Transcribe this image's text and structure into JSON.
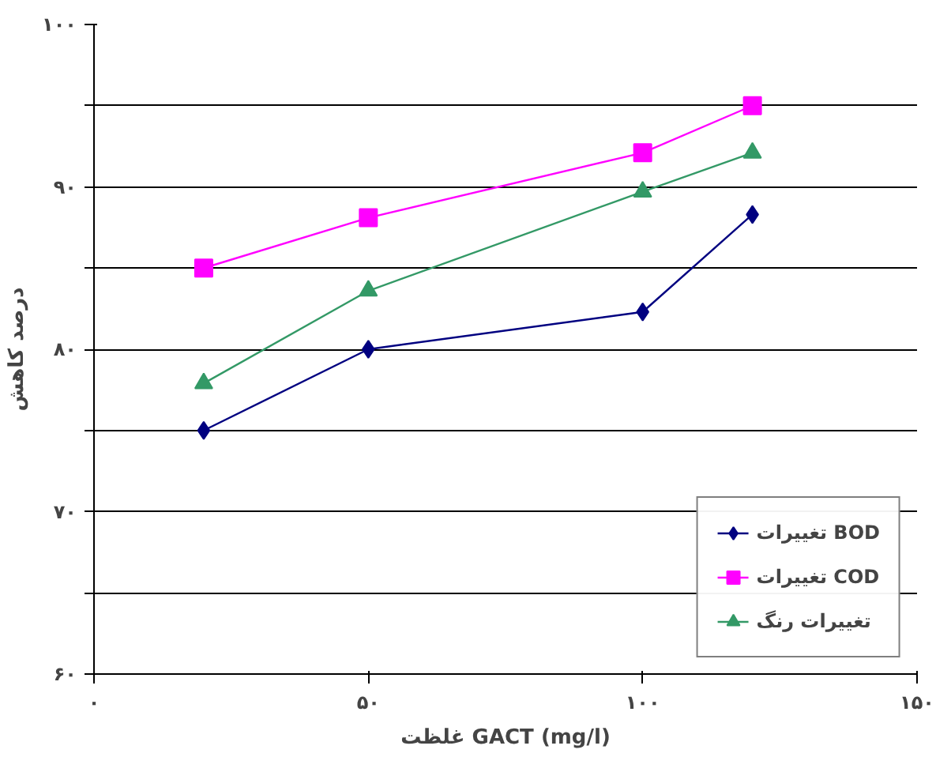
{
  "chart_data": {
    "type": "line",
    "xlabel": "غلظت GACT (mg/l)",
    "ylabel": "درصد کاهش",
    "x": [
      20,
      50,
      100,
      120
    ],
    "series": [
      {
        "name": "تغییرات BOD",
        "color": "#000080",
        "marker": "diamond",
        "values": [
          75.0,
          80.0,
          82.3,
          88.3
        ]
      },
      {
        "name": "تغییرات COD",
        "color": "#ff00ff",
        "marker": "square",
        "values": [
          85.0,
          88.1,
          92.1,
          95.0
        ]
      },
      {
        "name": "تغییرات رنگ",
        "color": "#339966",
        "marker": "triangle",
        "values": [
          77.9,
          83.6,
          89.7,
          92.1
        ]
      }
    ],
    "xlim": [
      0,
      150
    ],
    "xticks": [
      {
        "value": 0,
        "label": "۰"
      },
      {
        "value": 50,
        "label": "۵۰"
      },
      {
        "value": 100,
        "label": "۱۰۰"
      },
      {
        "value": 150,
        "label": "۱۵۰"
      }
    ],
    "ylim": [
      60,
      100
    ],
    "yticks": [
      {
        "value": 60,
        "label": "۶۰"
      },
      {
        "value": 65,
        "label": null
      },
      {
        "value": 70,
        "label": "۷۰"
      },
      {
        "value": 75,
        "label": null
      },
      {
        "value": 80,
        "label": "۸۰"
      },
      {
        "value": 85,
        "label": null
      },
      {
        "value": 90,
        "label": "۹۰"
      },
      {
        "value": 95,
        "label": null
      },
      {
        "value": 100,
        "label": "۱۰۰"
      }
    ],
    "grid": "y",
    "legend": "bottom right",
    "line_style": "solid"
  }
}
